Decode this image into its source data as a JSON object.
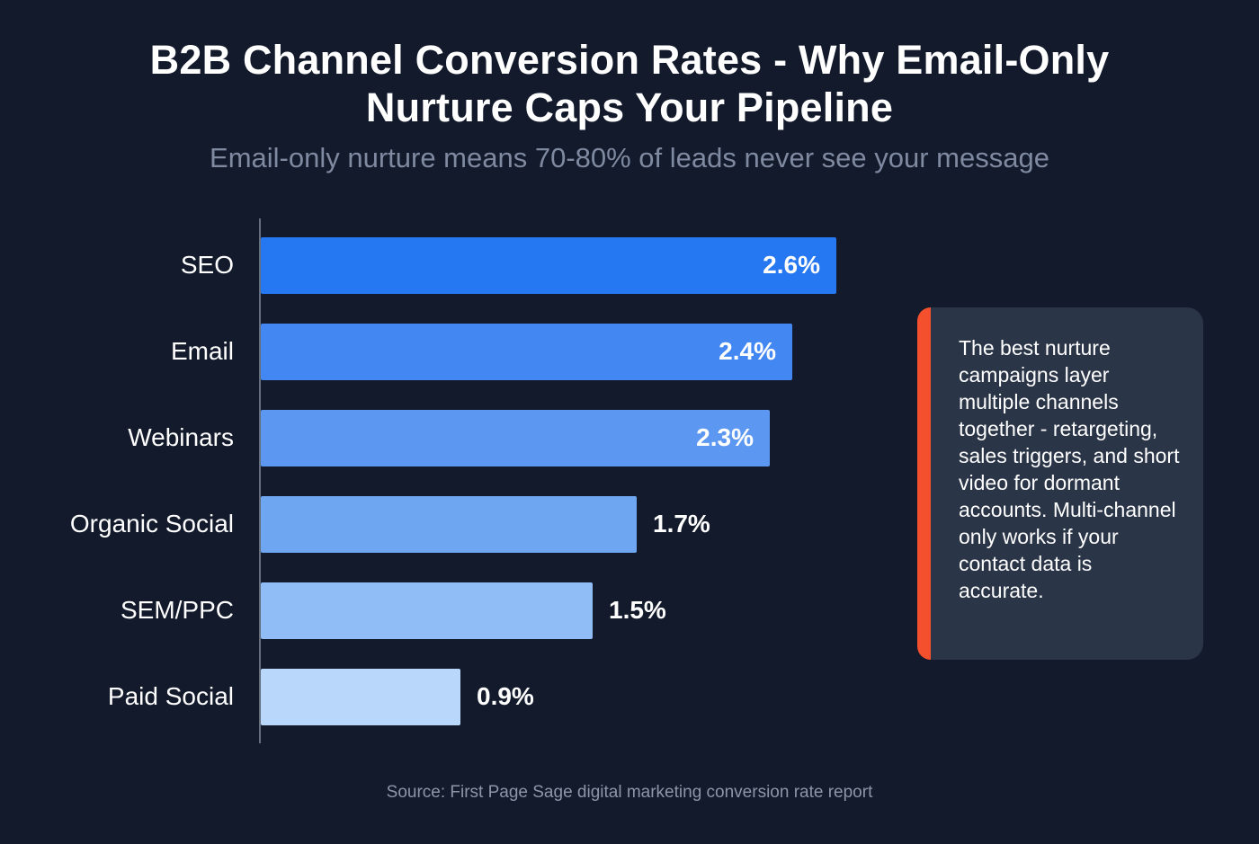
{
  "page": {
    "title": "B2B Channel Conversion Rates - Why Email-Only Nurture Caps Your Pipeline",
    "subtitle": "Email-only nurture means 70-80% of leads never see your message",
    "source": "Source: First Page Sage digital marketing conversion rate report",
    "background_color": "#121a2b"
  },
  "chart_data": {
    "type": "bar",
    "orientation": "horizontal",
    "title": "B2B Channel Conversion Rates - Why Email-Only Nurture Caps Your Pipeline",
    "subtitle": "Email-only nurture means 70-80% of leads never see your message",
    "categories": [
      "SEO",
      "Email",
      "Webinars",
      "Organic Social",
      "SEM/PPC",
      "Paid Social"
    ],
    "values": [
      2.6,
      2.4,
      2.3,
      1.7,
      1.5,
      0.9
    ],
    "value_labels": [
      "2.6%",
      "2.4%",
      "2.3%",
      "1.7%",
      "1.5%",
      "0.9%"
    ],
    "x_max": 2.6,
    "xlabel": "",
    "ylabel": "",
    "grid": false,
    "legend": false,
    "bar_colors": [
      "#2577f2",
      "#4388f2",
      "#5c98f1",
      "#6ea6f2",
      "#90bdf6",
      "#b9d7fb"
    ]
  },
  "callout": {
    "text": "The best nurture campaigns layer multiple channels together - retargeting, sales triggers, and short video for dormant accounts. Multi-channel only works if your contact data is accurate.",
    "accent_color": "#f4502e",
    "background_color": "#2b3548"
  }
}
